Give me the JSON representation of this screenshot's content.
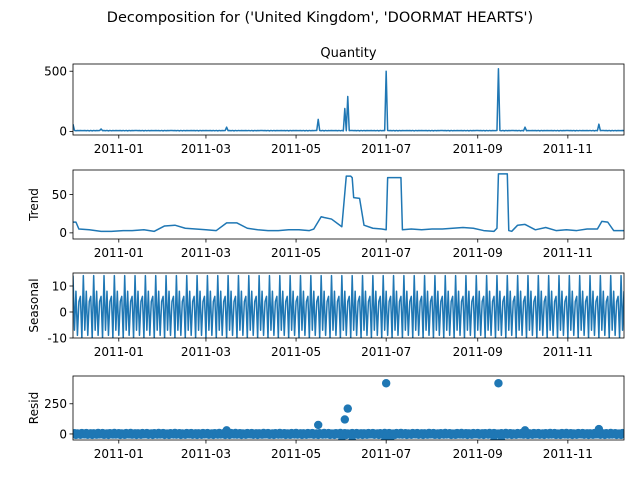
{
  "figure": {
    "suptitle": "Decomposition for ('United Kingdom', 'DOORMAT HEARTS')"
  },
  "chart_data": [
    {
      "type": "line",
      "title": "Quantity",
      "ylabel": "",
      "color": "#1f77b4",
      "ylim": [
        -30,
        560
      ],
      "yticks": [
        0,
        500
      ],
      "xticks": [
        "2011-01",
        "2011-03",
        "2011-05",
        "2011-07",
        "2011-09",
        "2011-11"
      ],
      "xrange": [
        "2010-12-01",
        "2011-12-09"
      ],
      "spikes": [
        {
          "date": "2010-12-01",
          "value": 60
        },
        {
          "date": "2010-12-20",
          "value": 20
        },
        {
          "date": "2011-03-15",
          "value": 35
        },
        {
          "date": "2011-05-16",
          "value": 100
        },
        {
          "date": "2011-06-03",
          "value": 190
        },
        {
          "date": "2011-06-05",
          "value": 290
        },
        {
          "date": "2011-07-01",
          "value": 500
        },
        {
          "date": "2011-09-15",
          "value": 520
        },
        {
          "date": "2011-10-03",
          "value": 35
        },
        {
          "date": "2011-11-22",
          "value": 60
        }
      ],
      "baseline": 8
    },
    {
      "type": "line",
      "title": "",
      "ylabel": "Trend",
      "color": "#1f77b4",
      "ylim": [
        -8,
        82
      ],
      "yticks": [
        0,
        50
      ],
      "xticks": [
        "2011-01",
        "2011-03",
        "2011-05",
        "2011-07",
        "2011-09",
        "2011-11"
      ],
      "xrange": [
        "2010-12-01",
        "2011-12-09"
      ],
      "x": [
        "2010-12-01",
        "2010-12-03",
        "2010-12-05",
        "2010-12-12",
        "2010-12-20",
        "2010-12-27",
        "2011-01-04",
        "2011-01-10",
        "2011-01-18",
        "2011-01-25",
        "2011-02-01",
        "2011-02-08",
        "2011-02-15",
        "2011-02-22",
        "2011-03-01",
        "2011-03-08",
        "2011-03-15",
        "2011-03-22",
        "2011-03-29",
        "2011-04-05",
        "2011-04-12",
        "2011-04-19",
        "2011-04-26",
        "2011-05-03",
        "2011-05-10",
        "2011-05-13",
        "2011-05-18",
        "2011-05-20",
        "2011-05-25",
        "2011-06-01",
        "2011-06-02",
        "2011-06-04",
        "2011-06-07",
        "2011-06-08",
        "2011-06-09",
        "2011-06-13",
        "2011-06-16",
        "2011-06-22",
        "2011-06-28",
        "2011-07-01",
        "2011-07-02",
        "2011-07-11",
        "2011-07-12",
        "2011-07-18",
        "2011-07-25",
        "2011-08-01",
        "2011-08-08",
        "2011-08-15",
        "2011-08-22",
        "2011-08-29",
        "2011-09-05",
        "2011-09-12",
        "2011-09-14",
        "2011-09-15",
        "2011-09-21",
        "2011-09-22",
        "2011-09-24",
        "2011-09-28",
        "2011-10-03",
        "2011-10-10",
        "2011-10-17",
        "2011-10-24",
        "2011-10-31",
        "2011-11-07",
        "2011-11-14",
        "2011-11-21",
        "2011-11-24",
        "2011-11-28",
        "2011-12-02",
        "2011-12-09"
      ],
      "values": [
        14,
        14,
        5,
        4,
        2,
        2,
        3,
        3,
        4,
        2,
        9,
        10,
        6,
        5,
        4,
        3,
        13,
        13,
        6,
        4,
        3,
        3,
        4,
        4,
        3,
        5,
        21,
        20,
        18,
        8,
        30,
        74,
        74,
        72,
        46,
        45,
        10,
        6,
        5,
        4,
        72,
        72,
        4,
        5,
        4,
        5,
        5,
        6,
        7,
        6,
        3,
        2,
        6,
        77,
        77,
        3,
        2,
        10,
        11,
        4,
        7,
        3,
        4,
        3,
        5,
        5,
        15,
        14,
        3,
        3
      ]
    },
    {
      "type": "line",
      "title": "",
      "ylabel": "Seasonal",
      "color": "#1f77b4",
      "ylim": [
        -10,
        15
      ],
      "yticks": [
        -10,
        0,
        10
      ],
      "xticks": [
        "2011-01",
        "2011-03",
        "2011-05",
        "2011-07",
        "2011-09",
        "2011-11"
      ],
      "xrange": [
        "2010-12-01",
        "2011-12-09"
      ],
      "period_days": 7,
      "weekly_pattern": [
        14,
        -7,
        8,
        -9,
        4,
        6,
        -10
      ]
    },
    {
      "type": "scatter",
      "title": "",
      "ylabel": "Resid",
      "color": "#1f77b4",
      "ylim": [
        -50,
        480
      ],
      "yticks": [
        0,
        250
      ],
      "xticks": [
        "2011-01",
        "2011-03",
        "2011-05",
        "2011-07",
        "2011-09",
        "2011-11"
      ],
      "xrange": [
        "2010-12-01",
        "2011-12-09"
      ],
      "outliers": [
        {
          "date": "2011-03-15",
          "value": 30
        },
        {
          "date": "2011-05-16",
          "value": 75
        },
        {
          "date": "2011-06-03",
          "value": 120
        },
        {
          "date": "2011-06-05",
          "value": 210
        },
        {
          "date": "2011-06-01",
          "value": -60
        },
        {
          "date": "2011-06-08",
          "value": -60
        },
        {
          "date": "2011-07-01",
          "value": 420
        },
        {
          "date": "2011-06-30",
          "value": -60
        },
        {
          "date": "2011-07-04",
          "value": -60
        },
        {
          "date": "2011-09-15",
          "value": 420
        },
        {
          "date": "2011-09-12",
          "value": -60
        },
        {
          "date": "2011-09-17",
          "value": -60
        },
        {
          "date": "2011-10-03",
          "value": 30
        },
        {
          "date": "2011-11-22",
          "value": 40
        }
      ]
    }
  ]
}
